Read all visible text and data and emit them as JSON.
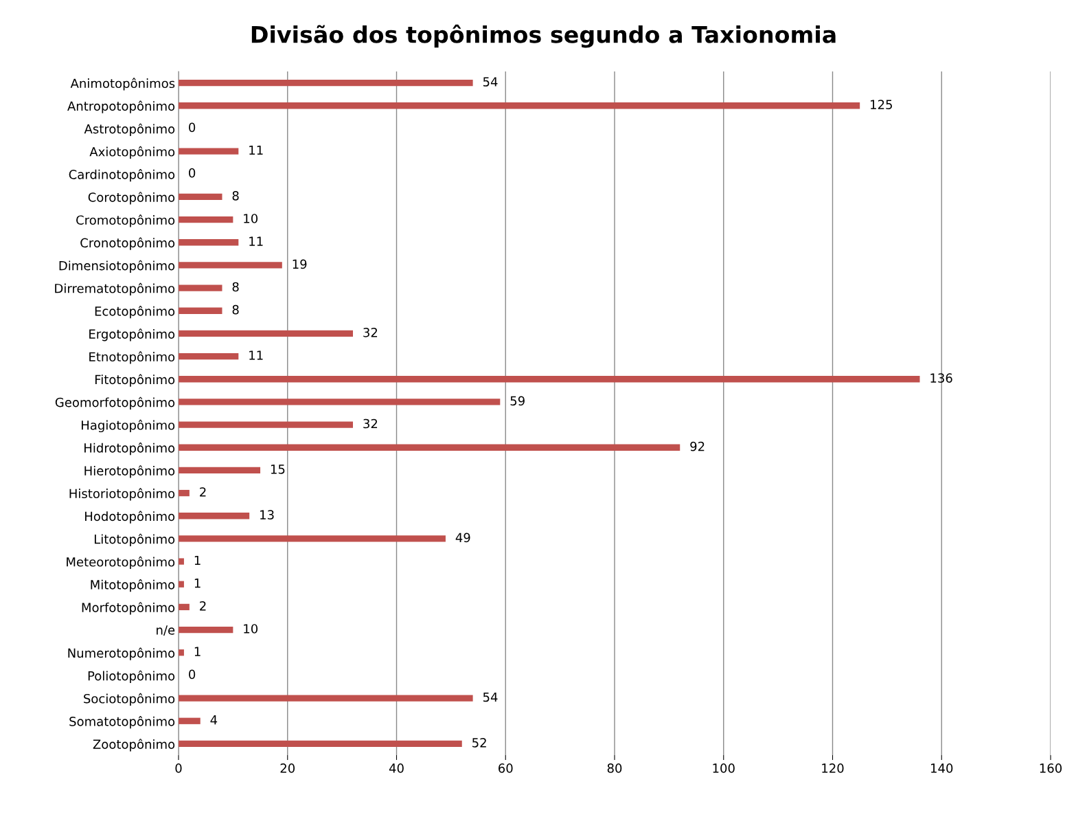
{
  "chart_data": {
    "type": "bar",
    "orientation": "horizontal",
    "title": "Divisão dos topônimos segundo a Taxionomia",
    "categories": [
      "Animotopônimos",
      "Antropotopônimo",
      "Astrotopônimo",
      "Axiotopônimo",
      "Cardinotopônimo",
      "Corotopônimo",
      "Cromotopônimo",
      "Cronotopônimo",
      "Dimensiotopônimo",
      "Dirrematotopônimo",
      "Ecotopônimo",
      "Ergotopônimo",
      "Etnotopônimo",
      "Fitotopônimo",
      "Geomorfotopônimo",
      "Hagiotopônimo",
      "Hidrotopônimo",
      "Hierotopônimo",
      "Historiotopônimo",
      "Hodotopônimo",
      "Litotopônimo",
      "Meteorotopônimo",
      "Mitotopônimo",
      "Morfotopônimo",
      "n/e",
      "Numerotopônimo",
      "Poliotopônimo",
      "Sociotopônimo",
      "Somatotopônimo",
      "Zootopônimo"
    ],
    "values": [
      54,
      125,
      0,
      11,
      0,
      8,
      10,
      11,
      19,
      8,
      8,
      32,
      11,
      136,
      59,
      32,
      92,
      15,
      2,
      13,
      49,
      1,
      1,
      2,
      10,
      1,
      0,
      54,
      4,
      52
    ],
    "color": "#c0504d",
    "xlim": [
      0,
      160
    ],
    "xticks": [
      0,
      20,
      40,
      60,
      80,
      100,
      120,
      140,
      160
    ],
    "grid": "x",
    "data_labels": true
  }
}
